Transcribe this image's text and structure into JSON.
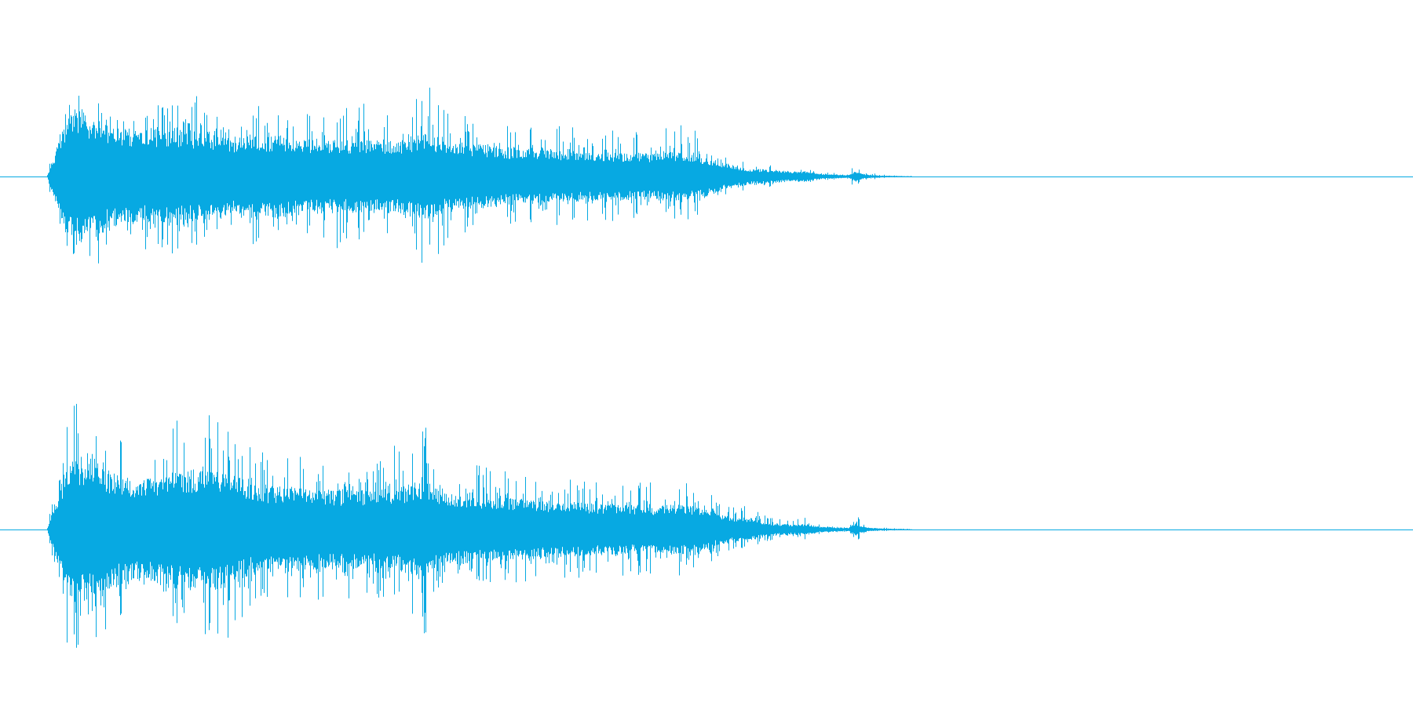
{
  "waveform": {
    "color": "#07a9e2",
    "background": "#ffffff"
  },
  "chart_data": {
    "type": "area",
    "title": "",
    "xlabel": "",
    "ylabel": "",
    "grid": false,
    "legend": "none",
    "ylim": [
      -1,
      1
    ],
    "x_fraction": [
      0.033,
      0.045,
      0.052,
      0.065,
      0.08,
      0.1,
      0.12,
      0.14,
      0.16,
      0.18,
      0.2,
      0.22,
      0.24,
      0.26,
      0.28,
      0.3,
      0.32,
      0.34,
      0.36,
      0.38,
      0.4,
      0.42,
      0.44,
      0.46,
      0.48,
      0.5,
      0.51,
      0.52,
      0.53,
      0.54,
      0.55,
      0.56,
      0.57,
      0.58,
      0.59,
      0.6,
      0.605,
      0.61,
      0.615,
      0.62,
      0.625,
      0.63,
      0.635,
      0.64,
      0.645,
      0.65,
      1.0
    ],
    "series": [
      {
        "channel": 1,
        "peak_max": [
          0.0,
          0.82,
          0.95,
          0.82,
          0.68,
          0.62,
          0.72,
          0.66,
          0.56,
          0.58,
          0.68,
          0.58,
          0.55,
          0.62,
          0.6,
          0.78,
          0.54,
          0.52,
          0.47,
          0.44,
          0.42,
          0.4,
          0.4,
          0.38,
          0.44,
          0.38,
          0.22,
          0.15,
          0.12,
          0.11,
          0.09,
          0.06,
          0.1,
          0.04,
          0.03,
          0.02,
          0.12,
          0.06,
          0.04,
          0.02,
          0.015,
          0.01,
          0.008,
          0.006,
          0.005,
          0.004,
          0.0
        ],
        "peak_min": [
          0.0,
          -0.82,
          -1.0,
          -0.95,
          -0.72,
          -0.6,
          -0.64,
          -0.58,
          -0.54,
          -0.56,
          -0.58,
          -0.52,
          -0.62,
          -0.52,
          -0.5,
          -0.8,
          -0.48,
          -0.47,
          -0.44,
          -0.42,
          -0.4,
          -0.38,
          -0.36,
          -0.35,
          -0.4,
          -0.3,
          -0.2,
          -0.14,
          -0.11,
          -0.1,
          -0.08,
          -0.05,
          -0.08,
          -0.035,
          -0.03,
          -0.02,
          -0.12,
          -0.05,
          -0.035,
          -0.02,
          -0.015,
          -0.01,
          -0.008,
          -0.006,
          -0.005,
          -0.004,
          0.0
        ],
        "rms": [
          0.0,
          0.28,
          0.38,
          0.34,
          0.28,
          0.26,
          0.27,
          0.25,
          0.22,
          0.22,
          0.23,
          0.21,
          0.2,
          0.21,
          0.2,
          0.24,
          0.19,
          0.18,
          0.16,
          0.15,
          0.14,
          0.14,
          0.13,
          0.13,
          0.14,
          0.11,
          0.08,
          0.06,
          0.045,
          0.04,
          0.035,
          0.025,
          0.03,
          0.015,
          0.012,
          0.008,
          0.03,
          0.015,
          0.01,
          0.007,
          0.005,
          0.004,
          0.003,
          0.002,
          0.0015,
          0.001,
          0.0
        ]
      },
      {
        "channel": 2,
        "peak_max": [
          0.0,
          0.78,
          0.96,
          0.92,
          0.72,
          0.66,
          0.82,
          0.88,
          0.9,
          0.58,
          0.6,
          0.56,
          0.55,
          0.56,
          0.64,
          0.8,
          0.5,
          0.49,
          0.45,
          0.42,
          0.4,
          0.38,
          0.38,
          0.36,
          0.38,
          0.34,
          0.2,
          0.17,
          0.18,
          0.11,
          0.08,
          0.07,
          0.1,
          0.04,
          0.03,
          0.02,
          0.12,
          0.06,
          0.04,
          0.02,
          0.015,
          0.01,
          0.008,
          0.006,
          0.005,
          0.004,
          0.0
        ],
        "peak_min": [
          0.0,
          -0.8,
          -1.0,
          -0.98,
          -0.74,
          -0.6,
          -0.78,
          -0.9,
          -0.84,
          -0.58,
          -0.56,
          -0.54,
          -0.54,
          -0.5,
          -0.56,
          -0.8,
          -0.48,
          -0.46,
          -0.43,
          -0.4,
          -0.38,
          -0.36,
          -0.36,
          -0.34,
          -0.36,
          -0.3,
          -0.18,
          -0.15,
          -0.16,
          -0.1,
          -0.07,
          -0.06,
          -0.08,
          -0.035,
          -0.03,
          -0.02,
          -0.1,
          -0.05,
          -0.035,
          -0.02,
          -0.015,
          -0.01,
          -0.008,
          -0.006,
          -0.005,
          -0.004,
          0.0
        ],
        "rms": [
          0.0,
          0.28,
          0.38,
          0.36,
          0.29,
          0.26,
          0.3,
          0.31,
          0.3,
          0.22,
          0.22,
          0.21,
          0.2,
          0.2,
          0.21,
          0.24,
          0.18,
          0.17,
          0.16,
          0.15,
          0.14,
          0.13,
          0.13,
          0.12,
          0.13,
          0.11,
          0.075,
          0.06,
          0.06,
          0.04,
          0.03,
          0.025,
          0.03,
          0.015,
          0.012,
          0.008,
          0.03,
          0.015,
          0.01,
          0.007,
          0.005,
          0.004,
          0.003,
          0.002,
          0.0015,
          0.001,
          0.0
        ]
      }
    ]
  }
}
